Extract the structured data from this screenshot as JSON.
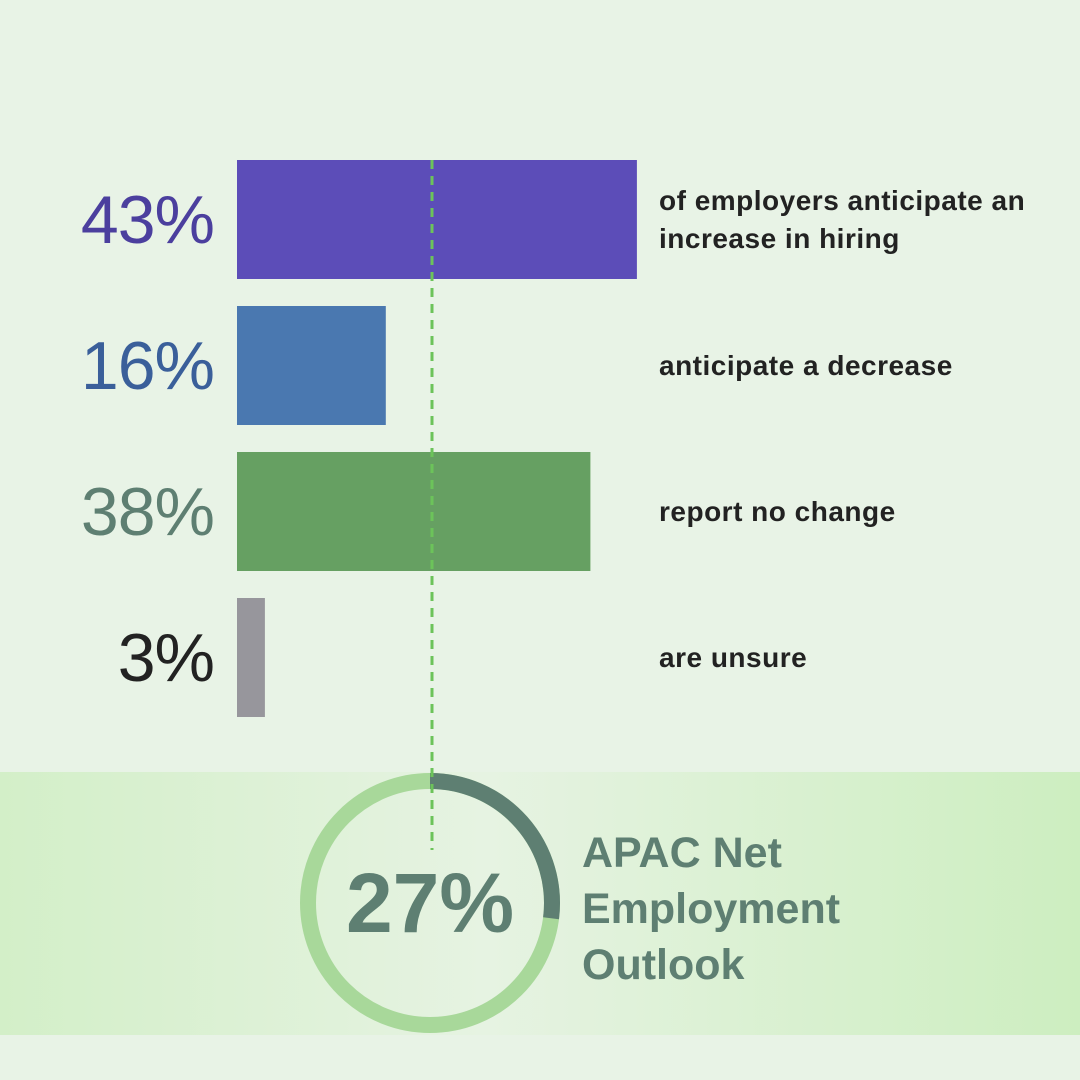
{
  "chart_data": [
    {
      "type": "bar",
      "categories": [
        "of employers anticipate an increase in hiring",
        "anticipate a decrease",
        "report no change",
        "are unsure"
      ],
      "values": [
        43,
        16,
        38,
        3
      ],
      "value_labels": [
        "43%",
        "16%",
        "38%",
        "3%"
      ],
      "colors": [
        "#5c4db8",
        "#4a78b0",
        "#66a062",
        "#97969c"
      ],
      "label_colors": [
        "#4b3f9e",
        "#3a5f9a",
        "#5e7f72",
        "#222222"
      ]
    },
    {
      "type": "donut",
      "title": "APAC Net Employment Outlook",
      "value": 27,
      "value_label": "27%",
      "ylim": [
        0,
        100
      ],
      "color": "#5e7f72",
      "track_color": "#a8d89a"
    }
  ]
}
